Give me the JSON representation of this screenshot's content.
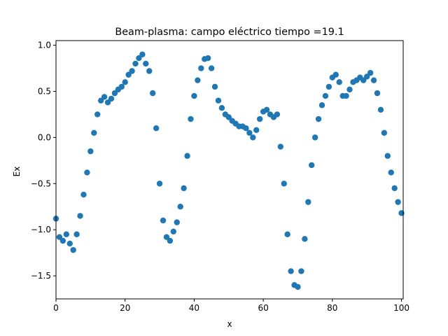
{
  "chart_data": {
    "type": "scatter",
    "title": "Beam-plasma: campo eléctrico  tiempo =19.1",
    "xlabel": "x",
    "ylabel": "Ex",
    "xlim": [
      0,
      100.5
    ],
    "ylim": [
      -1.75,
      1.05
    ],
    "xticks": [
      0,
      20,
      40,
      60,
      80,
      100
    ],
    "xtick_labels": [
      "0",
      "20",
      "40",
      "60",
      "80",
      "100"
    ],
    "yticks": [
      -1.5,
      -1.0,
      -0.5,
      0.0,
      0.5,
      1.0
    ],
    "ytick_labels": [
      "−1.5",
      "−1.0",
      "−0.5",
      "0.0",
      "0.5",
      "1.0"
    ],
    "grid": false,
    "marker_color": "#1f77b4",
    "series": [
      {
        "x": [
          0,
          1,
          2,
          3,
          4,
          5,
          6,
          7,
          8,
          9,
          10,
          11,
          12,
          13,
          14,
          15,
          16,
          17,
          18,
          19,
          20,
          21,
          22,
          23,
          24,
          25,
          26,
          27,
          28,
          29,
          30,
          31,
          32,
          33,
          34,
          35,
          36,
          37,
          38,
          39,
          40,
          41,
          42,
          43,
          44,
          45,
          46,
          47,
          48,
          49,
          50,
          51,
          52,
          53,
          54,
          55,
          56,
          57,
          58,
          59,
          60,
          61,
          62,
          63,
          64,
          65,
          66,
          67,
          68,
          69,
          70,
          71,
          72,
          73,
          74,
          75,
          76,
          77,
          78,
          79,
          80,
          81,
          82,
          83,
          84,
          85,
          86,
          87,
          88,
          89,
          90,
          91,
          92,
          93,
          94,
          95,
          96,
          97,
          98,
          99,
          100
        ],
        "y": [
          -0.88,
          -1.08,
          -1.12,
          -1.05,
          -1.15,
          -1.22,
          -1.05,
          -0.85,
          -0.62,
          -0.38,
          -0.15,
          0.05,
          0.25,
          0.4,
          0.44,
          0.38,
          0.42,
          0.48,
          0.52,
          0.55,
          0.6,
          0.68,
          0.72,
          0.8,
          0.86,
          0.9,
          0.8,
          0.72,
          0.48,
          0.1,
          -0.5,
          -0.9,
          -1.08,
          -1.12,
          -1.02,
          -0.92,
          -0.75,
          -0.55,
          -0.2,
          0.2,
          0.45,
          0.62,
          0.75,
          0.85,
          0.86,
          0.75,
          0.55,
          0.4,
          0.32,
          0.25,
          0.22,
          0.18,
          0.15,
          0.12,
          0.12,
          0.1,
          0.05,
          0.0,
          0.08,
          0.2,
          0.28,
          0.3,
          0.25,
          0.22,
          0.25,
          -0.1,
          -0.5,
          -1.05,
          -1.45,
          -1.6,
          -1.62,
          -1.45,
          -1.1,
          -0.7,
          -0.3,
          0.0,
          0.2,
          0.35,
          0.45,
          0.55,
          0.65,
          0.68,
          0.6,
          0.45,
          0.45,
          0.52,
          0.6,
          0.62,
          0.65,
          0.62,
          0.66,
          0.7,
          0.62,
          0.48,
          0.3,
          0.05,
          -0.2,
          -0.38,
          -0.55,
          -0.7,
          -0.82
        ]
      }
    ]
  }
}
